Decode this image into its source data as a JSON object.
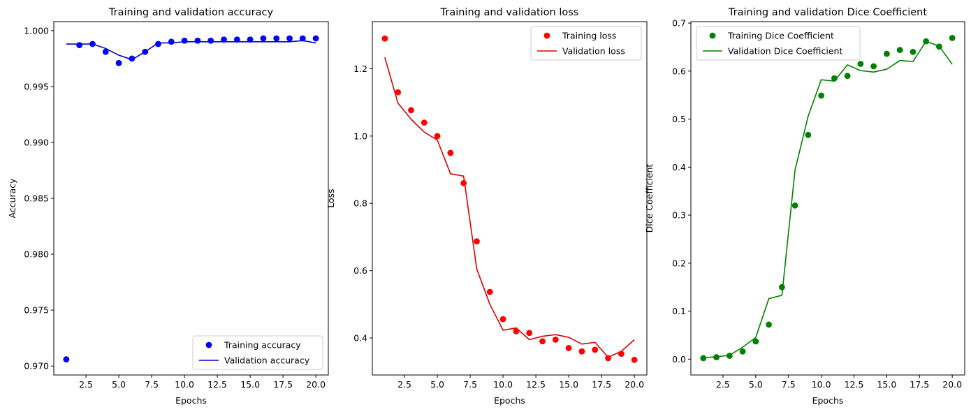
{
  "chart_data": [
    {
      "type": "line",
      "title": "Training and validation accuracy",
      "xlabel": "Epochs",
      "ylabel": "Accuracy",
      "xlim": [
        0.05,
        20.95
      ],
      "ylim": [
        0.9692,
        1.0008
      ],
      "xticks": [
        2.5,
        5.0,
        7.5,
        10.0,
        12.5,
        15.0,
        17.5,
        20.0
      ],
      "xtick_labels": [
        "2.5",
        "5.0",
        "7.5",
        "10.0",
        "12.5",
        "15.0",
        "17.5",
        "20.0"
      ],
      "yticks": [
        0.97,
        0.975,
        0.98,
        0.985,
        0.99,
        0.995,
        1.0
      ],
      "ytick_labels": [
        "0.970",
        "0.975",
        "0.980",
        "0.985",
        "0.990",
        "0.995",
        "1.000"
      ],
      "legend_position": "lower-right",
      "x": [
        1,
        2,
        3,
        4,
        5,
        6,
        7,
        8,
        9,
        10,
        11,
        12,
        13,
        14,
        15,
        16,
        17,
        18,
        19,
        20
      ],
      "series": [
        {
          "name": "Training accuracy",
          "style": "points",
          "color": "#0000ff",
          "values": [
            0.9706,
            0.9987,
            0.9988,
            0.9981,
            0.9971,
            0.9975,
            0.9981,
            0.9988,
            0.999,
            0.9991,
            0.9991,
            0.9991,
            0.9992,
            0.9992,
            0.9992,
            0.9993,
            0.9993,
            0.9993,
            0.9993,
            0.9993
          ]
        },
        {
          "name": "Validation accuracy",
          "style": "line",
          "color": "#0000cc",
          "values": [
            0.9988,
            0.9988,
            0.9988,
            0.9984,
            0.9978,
            0.9974,
            0.9981,
            0.9989,
            0.9989,
            0.999,
            0.999,
            0.999,
            0.999,
            0.999,
            0.999,
            0.999,
            0.999,
            0.999,
            0.9991,
            0.9989
          ]
        }
      ]
    },
    {
      "type": "line",
      "title": "Training and validation loss",
      "xlabel": "Epochs",
      "ylabel": "Loss",
      "xlim": [
        0.05,
        20.95
      ],
      "ylim": [
        0.29,
        1.34
      ],
      "xticks": [
        2.5,
        5.0,
        7.5,
        10.0,
        12.5,
        15.0,
        17.5,
        20.0
      ],
      "xtick_labels": [
        "2.5",
        "5.0",
        "7.5",
        "10.0",
        "12.5",
        "15.0",
        "17.5",
        "20.0"
      ],
      "yticks": [
        0.4,
        0.6,
        0.8,
        1.0,
        1.2
      ],
      "ytick_labels": [
        "0.4",
        "0.6",
        "0.8",
        "1.0",
        "1.2"
      ],
      "legend_position": "top-right",
      "x": [
        1,
        2,
        3,
        4,
        5,
        6,
        7,
        8,
        9,
        10,
        11,
        12,
        13,
        14,
        15,
        16,
        17,
        18,
        19,
        20
      ],
      "series": [
        {
          "name": "Training loss",
          "style": "points",
          "color": "#ff0000",
          "values": [
            1.29,
            1.13,
            1.077,
            1.04,
            1.0,
            0.95,
            0.86,
            0.687,
            0.537,
            0.456,
            0.42,
            0.415,
            0.39,
            0.395,
            0.37,
            0.36,
            0.365,
            0.34,
            0.353,
            0.335
          ]
        },
        {
          "name": "Validation loss",
          "style": "line",
          "color": "#dd0000",
          "values": [
            1.234,
            1.098,
            1.05,
            1.012,
            0.988,
            0.888,
            0.881,
            0.605,
            0.5,
            0.423,
            0.43,
            0.395,
            0.405,
            0.41,
            0.402,
            0.382,
            0.387,
            0.343,
            0.36,
            0.395
          ]
        }
      ]
    },
    {
      "type": "line",
      "title": "Training and validation Dice Coefficient",
      "xlabel": "Epochs",
      "ylabel": "Dice Coefficient",
      "xlim": [
        0.05,
        20.95
      ],
      "ylim": [
        -0.033,
        0.703
      ],
      "xticks": [
        2.5,
        5.0,
        7.5,
        10.0,
        12.5,
        15.0,
        17.5,
        20.0
      ],
      "xtick_labels": [
        "2.5",
        "5.0",
        "7.5",
        "10.0",
        "12.5",
        "15.0",
        "17.5",
        "20.0"
      ],
      "yticks": [
        0.0,
        0.1,
        0.2,
        0.3,
        0.4,
        0.5,
        0.6,
        0.7
      ],
      "ytick_labels": [
        "0.0",
        "0.1",
        "0.2",
        "0.3",
        "0.4",
        "0.5",
        "0.6",
        "0.7"
      ],
      "legend_position": "top-left",
      "x": [
        1,
        2,
        3,
        4,
        5,
        6,
        7,
        8,
        9,
        10,
        11,
        12,
        13,
        14,
        15,
        16,
        17,
        18,
        19,
        20
      ],
      "series": [
        {
          "name": "Training Dice Coefficient",
          "style": "points",
          "color": "#008000",
          "values": [
            0.002,
            0.004,
            0.007,
            0.016,
            0.037,
            0.072,
            0.15,
            0.32,
            0.467,
            0.549,
            0.585,
            0.59,
            0.615,
            0.61,
            0.636,
            0.644,
            0.64,
            0.662,
            0.651,
            0.669
          ]
        },
        {
          "name": "Validation Dice Coefficient",
          "style": "line",
          "color": "#008000",
          "values": [
            0.003,
            0.005,
            0.008,
            0.025,
            0.045,
            0.126,
            0.133,
            0.394,
            0.506,
            0.582,
            0.579,
            0.613,
            0.601,
            0.598,
            0.604,
            0.622,
            0.62,
            0.662,
            0.652,
            0.614
          ]
        }
      ]
    }
  ]
}
